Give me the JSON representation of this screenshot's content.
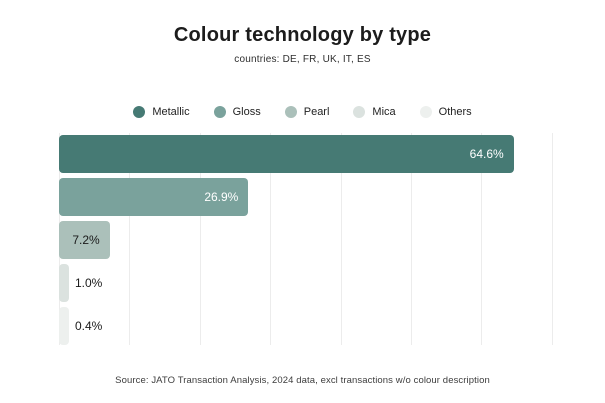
{
  "header": {
    "title": "Colour technology by type",
    "subtitle": "countries: DE, FR, UK, IT, ES"
  },
  "legend": {
    "items": [
      {
        "label": "Metallic",
        "color": "#467A74"
      },
      {
        "label": "Gloss",
        "color": "#7AA29C"
      },
      {
        "label": "Pearl",
        "color": "#ABC0BA"
      },
      {
        "label": "Mica",
        "color": "#DBE2DF"
      },
      {
        "label": "Others",
        "color": "#EDF0EE"
      }
    ]
  },
  "chart_data": {
    "type": "bar",
    "orientation": "horizontal",
    "title": "Colour technology by type",
    "subtitle": "countries: DE, FR, UK, IT, ES",
    "categories": [
      "Metallic",
      "Gloss",
      "Pearl",
      "Mica",
      "Others"
    ],
    "values": [
      64.6,
      26.9,
      7.2,
      1.0,
      0.4
    ],
    "value_labels": [
      "64.6%",
      "26.9%",
      "7.2%",
      "1.0%",
      "0.4%"
    ],
    "colors": [
      "#467A74",
      "#7AA29C",
      "#ABC0BA",
      "#DBE2DF",
      "#EDF0EE"
    ],
    "label_styles": [
      {
        "position": "inside",
        "color": "#FFFFFF"
      },
      {
        "position": "inside",
        "color": "#FFFFFF"
      },
      {
        "position": "inside",
        "color": "#1A1A1A"
      },
      {
        "position": "outside",
        "color": "#1A1A1A"
      },
      {
        "position": "outside",
        "color": "#1A1A1A"
      }
    ],
    "xlabel": "",
    "ylabel": "",
    "xlim": [
      0,
      77
    ],
    "gridline_step": 10,
    "gridline_max": 70,
    "grid": true,
    "gridline_color": "#ECECEC",
    "legend_position": "top",
    "category_axis_labels_visible": false
  },
  "footer": {
    "source": "Source: JATO Transaction Analysis, 2024 data, excl transactions w/o colour description"
  }
}
